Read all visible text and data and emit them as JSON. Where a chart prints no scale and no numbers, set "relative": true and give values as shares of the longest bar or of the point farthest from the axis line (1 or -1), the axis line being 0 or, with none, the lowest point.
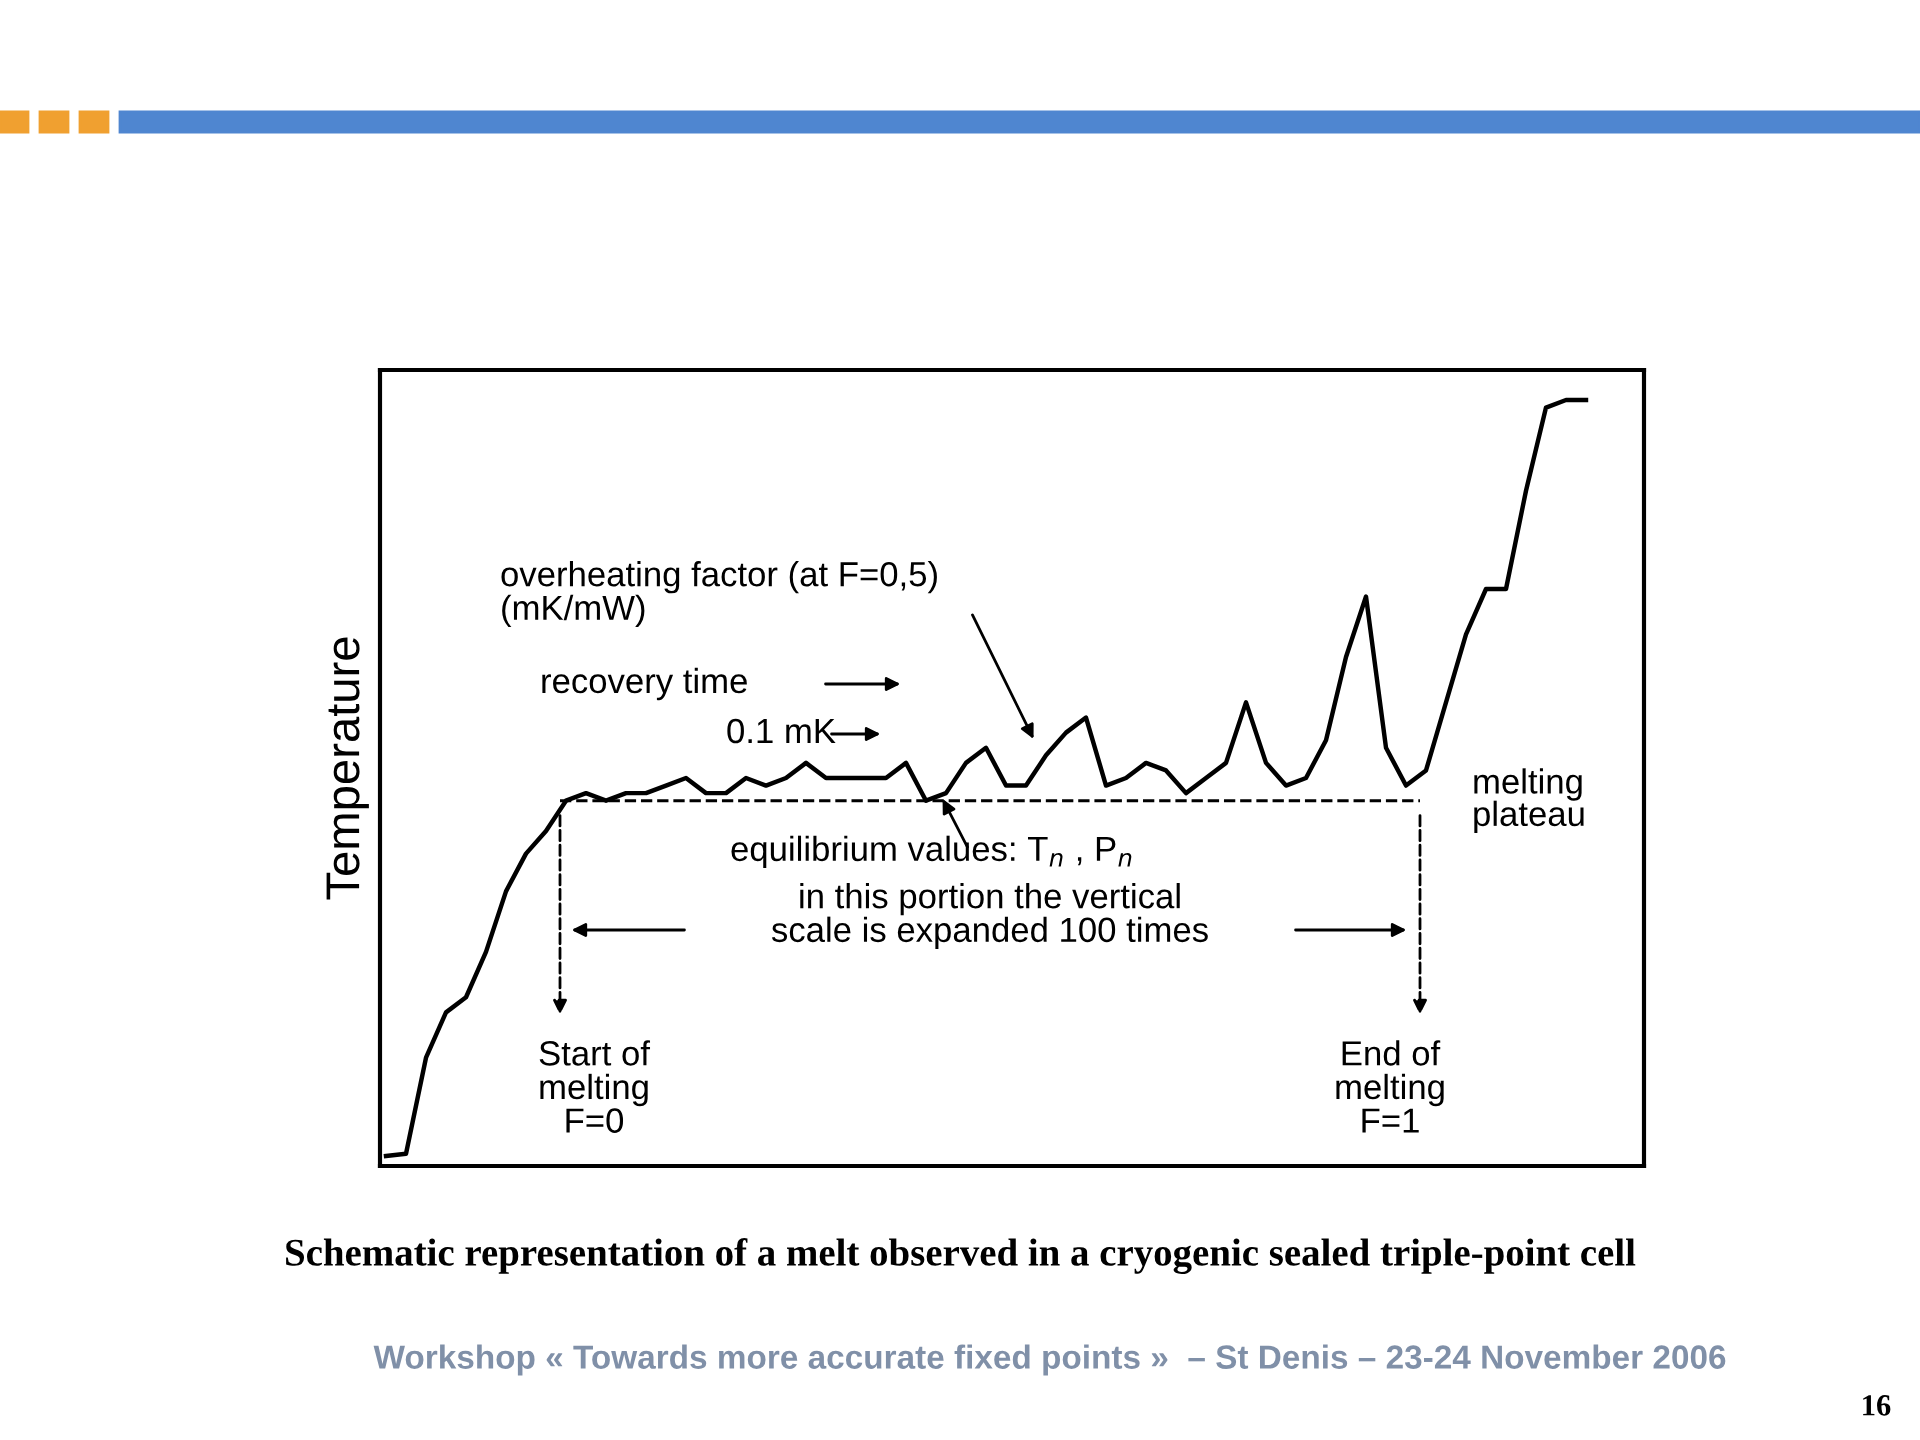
{
  "chart_data": {
    "type": "line",
    "relative": true,
    "ylabel": "Temperature",
    "color": "#000000",
    "line_style": "solid",
    "marker": "none",
    "grid": false,
    "legend": false,
    "categories": [
      null,
      null,
      null,
      null,
      null,
      null,
      null,
      null,
      null,
      null,
      null,
      null,
      null,
      null,
      null,
      null,
      null,
      null,
      null,
      null,
      null,
      null,
      null,
      null,
      null,
      null,
      null,
      null,
      null,
      null,
      null,
      null,
      null,
      null,
      null,
      null,
      null,
      null,
      null,
      null,
      null,
      null,
      null,
      null,
      null,
      null,
      null,
      null,
      null,
      null,
      null,
      null,
      null,
      null,
      null,
      null,
      null,
      null,
      null,
      null,
      null
    ],
    "values": [
      0,
      0.003,
      0.13,
      0.19,
      0.21,
      0.27,
      0.35,
      0.4,
      0.43,
      0.47,
      0.48,
      0.47,
      0.48,
      0.48,
      0.49,
      0.5,
      0.48,
      0.48,
      0.5,
      0.49,
      0.5,
      0.52,
      0.5,
      0.5,
      0.5,
      0.5,
      0.52,
      0.47,
      0.48,
      0.52,
      0.54,
      0.49,
      0.49,
      0.53,
      0.56,
      0.58,
      0.49,
      0.5,
      0.52,
      0.51,
      0.48,
      0.5,
      0.52,
      0.6,
      0.52,
      0.49,
      0.5,
      0.55,
      0.66,
      0.74,
      0.54,
      0.49,
      0.51,
      0.6,
      0.69,
      0.75,
      0.75,
      0.88,
      0.99,
      1,
      1
    ],
    "ref_lines": [
      {
        "axis": "y",
        "value": 0.47,
        "label": "melting\nplateau",
        "line_style": "dashed",
        "color": "#000000"
      }
    ],
    "annotations": [
      "overheating factor (at F=0,5)\n(mK/mW)",
      "recovery time",
      "0.1 mK",
      "equilibrium values: T$_{n}$ , P$_{n}$",
      "in this portion the vertical\nscale is expanded 100 times",
      "Start of\nmelting\nF=0",
      "End of\nmelting\nF=1",
      "Schematic representation of a melt observed in a cryogenic sealed triple-point cell",
      "Workshop « Towards more accurate fixed points »  – St Denis – 23-24 November 2006",
      "16"
    ]
  }
}
